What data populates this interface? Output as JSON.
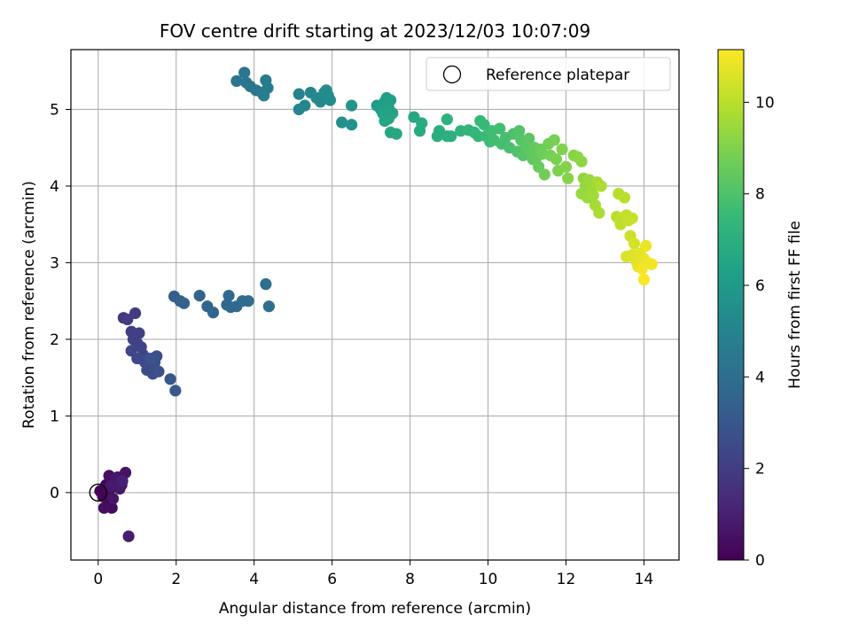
{
  "chart_data": {
    "type": "scatter",
    "title": "FOV centre drift starting at 2023/12/03 10:07:09",
    "xlabel": "Angular distance from reference (arcmin)",
    "ylabel": "Rotation from reference (arcmin)",
    "xlim": [
      -0.7,
      14.9
    ],
    "ylim": [
      -0.88,
      5.78
    ],
    "xticks": [
      0,
      2,
      4,
      6,
      8,
      10,
      12,
      14
    ],
    "yticks": [
      0,
      1,
      2,
      3,
      4,
      5
    ],
    "grid": true,
    "legend": {
      "location": "top-right",
      "entries": [
        "Reference platepar"
      ]
    },
    "reference_point": {
      "x": 0,
      "y": 0
    },
    "colorbar": {
      "label": "Hours from first FF file",
      "colormap": "viridis",
      "range": [
        0,
        11.15
      ],
      "ticks": [
        0,
        2,
        4,
        6,
        8,
        10
      ]
    },
    "series": [
      {
        "name": "Reference platepar",
        "points": [
          [
            0,
            0
          ]
        ]
      },
      {
        "points": [
          [
            0.05,
            0.02,
            0.05
          ],
          [
            0.12,
            -0.05,
            0.1
          ],
          [
            0.2,
            0.1,
            0.15
          ],
          [
            0.25,
            -0.1,
            0.2
          ],
          [
            0.3,
            0.05,
            0.25
          ],
          [
            0.35,
            -0.2,
            0.3
          ],
          [
            0.4,
            0.15,
            0.35
          ],
          [
            0.28,
            0.22,
            0.4
          ],
          [
            0.15,
            -0.2,
            0.45
          ],
          [
            0.5,
            0.2,
            0.5
          ],
          [
            0.6,
            0.1,
            0.55
          ],
          [
            0.7,
            0.26,
            0.6
          ],
          [
            0.38,
            -0.08,
            0.65
          ],
          [
            0.45,
            0.18,
            0.7
          ],
          [
            0.55,
            0.05,
            0.75
          ],
          [
            0.32,
            0.08,
            0.8
          ],
          [
            0.78,
            -0.57,
            0.9
          ],
          [
            0.62,
            0.15,
            1.0
          ],
          [
            0.65,
            2.28,
            1.8
          ],
          [
            0.95,
            2.34,
            1.9
          ],
          [
            0.75,
            2.26,
            2.0
          ],
          [
            0.85,
            2.1,
            2.05
          ],
          [
            1.05,
            2.08,
            2.1
          ],
          [
            0.9,
            2.0,
            2.15
          ],
          [
            1.0,
            1.95,
            2.2
          ],
          [
            1.1,
            1.9,
            2.25
          ],
          [
            0.85,
            1.85,
            2.3
          ],
          [
            1.15,
            1.8,
            2.35
          ],
          [
            1.0,
            1.75,
            2.4
          ],
          [
            1.2,
            1.7,
            2.45
          ],
          [
            1.3,
            1.65,
            2.5
          ],
          [
            1.25,
            1.6,
            2.55
          ],
          [
            1.4,
            1.55,
            2.6
          ],
          [
            1.5,
            1.78,
            2.65
          ],
          [
            1.45,
            1.7,
            2.7
          ],
          [
            1.55,
            1.58,
            2.75
          ],
          [
            1.35,
            1.75,
            2.8
          ],
          [
            1.85,
            1.48,
            3.0
          ],
          [
            1.98,
            1.33,
            3.1
          ],
          [
            1.95,
            2.56,
            3.3
          ],
          [
            2.1,
            2.5,
            3.4
          ],
          [
            2.2,
            2.47,
            3.45
          ],
          [
            2.6,
            2.57,
            3.55
          ],
          [
            2.8,
            2.43,
            3.6
          ],
          [
            2.95,
            2.35,
            3.65
          ],
          [
            3.3,
            2.45,
            3.7
          ],
          [
            3.35,
            2.57,
            3.75
          ],
          [
            3.4,
            2.42,
            3.8
          ],
          [
            3.55,
            2.43,
            3.85
          ],
          [
            3.7,
            2.5,
            3.9
          ],
          [
            3.85,
            2.5,
            3.95
          ],
          [
            4.3,
            2.72,
            4.0
          ],
          [
            4.38,
            2.43,
            4.05
          ],
          [
            3.55,
            5.37,
            4.3
          ],
          [
            3.75,
            5.48,
            4.35
          ],
          [
            3.8,
            5.35,
            4.4
          ],
          [
            3.9,
            5.3,
            4.45
          ],
          [
            4.05,
            5.25,
            4.5
          ],
          [
            4.2,
            5.22,
            4.55
          ],
          [
            4.3,
            5.38,
            4.6
          ],
          [
            4.35,
            5.28,
            4.65
          ],
          [
            4.25,
            5.18,
            4.7
          ],
          [
            5.15,
            5.2,
            5.0
          ],
          [
            5.15,
            5.0,
            5.05
          ],
          [
            5.3,
            5.05,
            5.1
          ],
          [
            5.45,
            5.22,
            5.15
          ],
          [
            5.6,
            5.15,
            5.2
          ],
          [
            5.7,
            5.1,
            5.25
          ],
          [
            5.8,
            5.22,
            5.3
          ],
          [
            5.9,
            5.18,
            5.35
          ],
          [
            5.95,
            5.12,
            5.4
          ],
          [
            5.85,
            5.25,
            5.45
          ],
          [
            6.25,
            4.83,
            5.6
          ],
          [
            6.5,
            4.8,
            5.65
          ],
          [
            6.5,
            5.05,
            5.7
          ],
          [
            7.15,
            5.05,
            6.1
          ],
          [
            7.25,
            5.0,
            6.15
          ],
          [
            7.35,
            5.1,
            6.2
          ],
          [
            7.4,
            5.15,
            6.25
          ],
          [
            7.5,
            5.12,
            6.3
          ],
          [
            7.45,
            5.02,
            6.35
          ],
          [
            7.3,
            4.95,
            6.4
          ],
          [
            7.45,
            4.88,
            6.45
          ],
          [
            7.55,
            4.95,
            6.5
          ],
          [
            7.35,
            4.85,
            6.55
          ],
          [
            7.5,
            4.7,
            6.6
          ],
          [
            7.65,
            4.68,
            6.65
          ],
          [
            8.1,
            4.9,
            6.7
          ],
          [
            8.25,
            4.72,
            6.8
          ],
          [
            8.3,
            4.82,
            6.85
          ],
          [
            8.7,
            4.65,
            6.9
          ],
          [
            8.75,
            4.72,
            6.95
          ],
          [
            8.95,
            4.65,
            7.0
          ],
          [
            9.05,
            4.65,
            7.05
          ],
          [
            8.95,
            4.87,
            7.1
          ],
          [
            9.3,
            4.72,
            7.2
          ],
          [
            9.5,
            4.73,
            7.3
          ],
          [
            9.65,
            4.7,
            7.35
          ],
          [
            9.75,
            4.65,
            7.4
          ],
          [
            9.8,
            4.85,
            7.45
          ],
          [
            9.9,
            4.8,
            7.5
          ],
          [
            9.95,
            4.65,
            7.55
          ],
          [
            10.05,
            4.58,
            7.6
          ],
          [
            10.1,
            4.72,
            7.65
          ],
          [
            10.15,
            4.6,
            7.7
          ],
          [
            10.3,
            4.75,
            7.75
          ],
          [
            10.35,
            4.55,
            7.8
          ],
          [
            10.45,
            4.63,
            7.85
          ],
          [
            10.55,
            4.5,
            7.9
          ],
          [
            10.65,
            4.68,
            7.95
          ],
          [
            10.75,
            4.45,
            8.0
          ],
          [
            10.8,
            4.72,
            8.05
          ],
          [
            10.85,
            4.6,
            8.1
          ],
          [
            10.9,
            4.4,
            8.15
          ],
          [
            10.95,
            4.55,
            8.2
          ],
          [
            11.0,
            4.5,
            8.25
          ],
          [
            11.05,
            4.62,
            8.3
          ],
          [
            11.1,
            4.45,
            8.35
          ],
          [
            11.15,
            4.35,
            8.4
          ],
          [
            11.2,
            4.5,
            8.45
          ],
          [
            11.25,
            4.38,
            8.5
          ],
          [
            11.3,
            4.25,
            8.55
          ],
          [
            11.35,
            4.48,
            8.6
          ],
          [
            11.4,
            4.42,
            8.65
          ],
          [
            11.45,
            4.15,
            8.7
          ],
          [
            11.55,
            4.55,
            8.75
          ],
          [
            11.6,
            4.4,
            8.8
          ],
          [
            11.7,
            4.6,
            8.85
          ],
          [
            11.75,
            4.35,
            8.9
          ],
          [
            11.8,
            4.2,
            8.95
          ],
          [
            11.9,
            4.48,
            9.0
          ],
          [
            12.0,
            4.25,
            9.05
          ],
          [
            12.05,
            4.1,
            9.1
          ],
          [
            12.2,
            4.4,
            9.15
          ],
          [
            12.3,
            4.38,
            9.2
          ],
          [
            12.4,
            4.32,
            9.25
          ],
          [
            12.45,
            4.1,
            9.3
          ],
          [
            12.5,
            4.0,
            9.35
          ],
          [
            12.4,
            3.9,
            9.4
          ],
          [
            12.55,
            3.85,
            9.45
          ],
          [
            12.6,
            4.08,
            9.5
          ],
          [
            12.65,
            3.95,
            9.55
          ],
          [
            12.7,
            3.88,
            9.6
          ],
          [
            12.8,
            4.05,
            9.65
          ],
          [
            12.75,
            3.75,
            9.7
          ],
          [
            12.85,
            3.65,
            9.75
          ],
          [
            12.9,
            4.0,
            9.8
          ],
          [
            13.35,
            3.9,
            9.95
          ],
          [
            13.5,
            3.85,
            10.0
          ],
          [
            13.3,
            3.6,
            10.05
          ],
          [
            13.4,
            3.5,
            10.1
          ],
          [
            13.55,
            3.62,
            10.15
          ],
          [
            13.6,
            3.55,
            10.2
          ],
          [
            13.7,
            3.58,
            10.25
          ],
          [
            13.65,
            3.35,
            10.35
          ],
          [
            13.75,
            3.25,
            10.45
          ],
          [
            13.55,
            3.08,
            10.55
          ],
          [
            13.7,
            3.1,
            10.6
          ],
          [
            13.8,
            3.02,
            10.65
          ],
          [
            13.9,
            3.12,
            10.7
          ],
          [
            13.85,
            2.95,
            10.75
          ],
          [
            14.0,
            3.05,
            10.8
          ],
          [
            14.05,
            3.22,
            10.85
          ],
          [
            14.1,
            3.0,
            10.9
          ],
          [
            14.2,
            2.98,
            10.95
          ],
          [
            13.95,
            2.92,
            11.0
          ],
          [
            14.0,
            2.78,
            11.1
          ]
        ]
      }
    ]
  }
}
